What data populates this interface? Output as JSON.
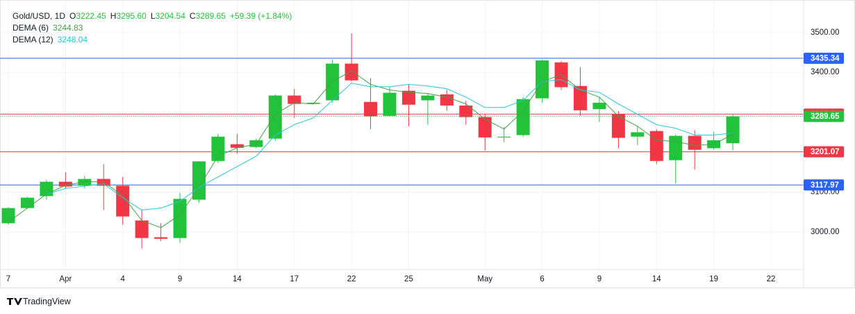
{
  "chart_data": {
    "type": "candlestick",
    "title": "Gold/USD, 1D",
    "ohlc_header": [
      {
        "key": "O",
        "value": "3222.45"
      },
      {
        "key": "H",
        "value": "3295.60"
      },
      {
        "key": "L",
        "value": "3204.54"
      },
      {
        "key": "C",
        "value": "3289.65"
      }
    ],
    "change": "+59.39 (+1.84%)",
    "categories": [
      "7",
      null,
      null,
      "Apr",
      null,
      null,
      "4",
      null,
      null,
      "9",
      null,
      null,
      "14",
      null,
      null,
      "17",
      null,
      null,
      "22",
      null,
      null,
      "25",
      null,
      null,
      null,
      "May",
      null,
      null,
      "6",
      null,
      null,
      "9",
      null,
      null,
      "14",
      null,
      null,
      "19",
      null,
      null,
      "22"
    ],
    "open": [
      3022,
      3060,
      3090,
      3126,
      3116,
      3133,
      3116,
      3029,
      2987,
      2985,
      3081,
      3178,
      3220,
      3213,
      3234,
      3342,
      3321,
      3330,
      3422,
      3326,
      3291,
      3354,
      3330,
      3345,
      3317,
      3288,
      3237,
      3243,
      3335,
      3425,
      3366,
      3308,
      3295,
      3239,
      3253,
      3180,
      3241,
      3210,
      3222.45,
      null,
      null
    ],
    "high": [
      3062,
      3088,
      3130,
      3150,
      3140,
      3170,
      3138,
      3057,
      3022,
      3098,
      3178,
      3246,
      3246,
      3234,
      3345,
      3359,
      3325,
      3432,
      3498,
      3385,
      3364,
      3370,
      3347,
      3356,
      3328,
      3295,
      3263,
      3338,
      3432,
      3429,
      3413,
      3338,
      3303,
      3265,
      3258,
      3244,
      3255,
      3251,
      3295.6,
      null,
      null
    ],
    "low": [
      3018,
      3058,
      3081,
      3109,
      3109,
      3055,
      3018,
      2959,
      2977,
      2973,
      3074,
      3173,
      3196,
      3210,
      3229,
      3286,
      3320,
      3324,
      3377,
      3258,
      3290,
      3265,
      3269,
      3304,
      3269,
      3204,
      3225,
      3239,
      3324,
      3356,
      3291,
      3276,
      3210,
      3218,
      3170,
      3121,
      3156,
      3206,
      3204.54,
      null,
      null
    ],
    "close": [
      3060,
      3086,
      3126,
      3114,
      3133,
      3116,
      3039,
      2985,
      2983,
      3083,
      3177,
      3239,
      3211,
      3230,
      3342,
      3321,
      3324,
      3422,
      3380,
      3290,
      3349,
      3319,
      3342,
      3317,
      3288,
      3237,
      3239,
      3333,
      3430,
      3363,
      3305,
      3324,
      3236,
      3250,
      3178,
      3241,
      3206,
      3230,
      3289.65,
      null,
      null
    ],
    "up_color": "#22c33a",
    "down_color": "#f23645",
    "series": [
      {
        "name": "DEMA (6)",
        "color": "#43a047",
        "values": [
          3025,
          3060,
          3095,
          3117,
          3126,
          3126,
          3091,
          3029,
          3011,
          3043,
          3112,
          3190,
          3211,
          3220,
          3295,
          3324,
          3321,
          3377,
          3404,
          3370,
          3356,
          3350,
          3347,
          3338,
          3321,
          3283,
          3258,
          3303,
          3377,
          3394,
          3356,
          3338,
          3290,
          3265,
          3230,
          3227,
          3217,
          3220,
          3244.83,
          null,
          null
        ]
      },
      {
        "name": "DEMA (12)",
        "color": "#26c6da",
        "values": [
          null,
          null,
          3095,
          3109,
          3115,
          3121,
          3086,
          3055,
          3060,
          3077,
          3112,
          3138,
          3164,
          3190,
          3243,
          3269,
          3286,
          3330,
          3373,
          3364,
          3364,
          3370,
          3366,
          3359,
          3338,
          3312,
          3312,
          3330,
          3377,
          3382,
          3356,
          3350,
          3321,
          3295,
          3269,
          3260,
          3243,
          3243,
          3248.04,
          null,
          null
        ]
      }
    ],
    "levels": [
      {
        "value": 3435.34,
        "color": "#2962ff"
      },
      {
        "value": 3295.46,
        "color": "#f23645"
      },
      {
        "value": 3201.07,
        "color": "#f23645"
      },
      {
        "value": 3117.97,
        "color": "#2962ff"
      }
    ],
    "ylim": [
      2906,
      3564
    ],
    "yticks": [
      {
        "value": 3000,
        "label": "3000.00"
      },
      {
        "value": 3100,
        "label": "3100.00"
      },
      {
        "value": 3400,
        "label": "3400.00"
      },
      {
        "value": 3500,
        "label": "3500.00"
      }
    ],
    "grid": true
  },
  "branding": "TradingView"
}
